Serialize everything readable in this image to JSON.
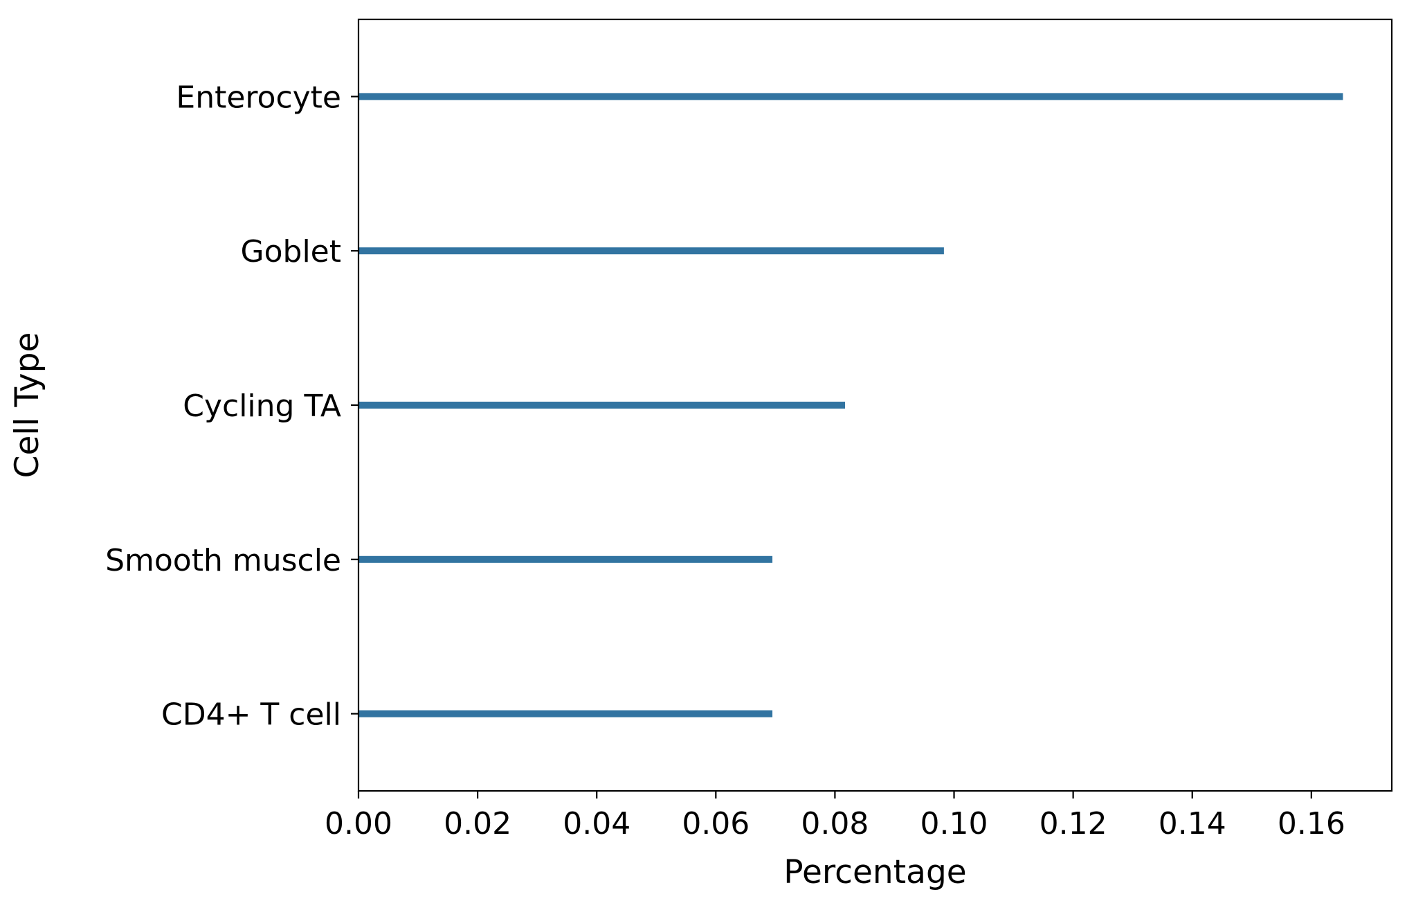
{
  "chart_data": {
    "type": "bar",
    "orientation": "horizontal",
    "title": "",
    "xlabel": "Percentage",
    "ylabel": "Cell Type",
    "categories": [
      "Enterocyte",
      "Goblet",
      "Cycling TA",
      "Smooth muscle",
      "CD4+ T cell"
    ],
    "values": [
      0.1653,
      0.0983,
      0.0817,
      0.0695,
      0.0695
    ],
    "xlim": [
      0,
      0.1735
    ],
    "xticks": [
      0,
      0.02,
      0.04,
      0.06,
      0.08,
      0.1,
      0.12,
      0.14,
      0.16
    ],
    "xtick_labels": [
      "0.00",
      "0.02",
      "0.04",
      "0.06",
      "0.08",
      "0.10",
      "0.12",
      "0.14",
      "0.16"
    ],
    "grid": false,
    "bar_color": "#3274a1"
  }
}
